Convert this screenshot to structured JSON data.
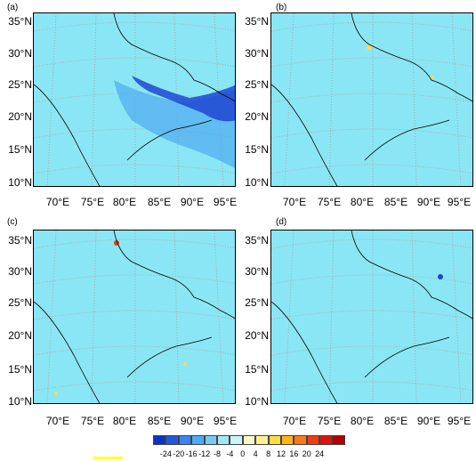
{
  "panels": [
    {
      "label": "(a)"
    },
    {
      "label": "(b)"
    },
    {
      "label": "(c)"
    },
    {
      "label": "(d)"
    }
  ],
  "lat_labels": [
    "35°N",
    "30°N",
    "25°N",
    "20°N",
    "15°N",
    "10°N"
  ],
  "lon_labels": [
    "70°E",
    "75°E",
    "80°E",
    "85°E",
    "90°E",
    "95°E"
  ],
  "colorbar": {
    "ticks": [
      "-24",
      "-20",
      "-16",
      "-12",
      "-8",
      "-4",
      "0",
      "4",
      "8",
      "12",
      "16",
      "20",
      "24"
    ],
    "colors": [
      "#0a32c8",
      "#1e5adc",
      "#3c82f0",
      "#50aaf5",
      "#78c8f5",
      "#a0e6f5",
      "#c8f5fa",
      "#fafac8",
      "#fff096",
      "#ffdc46",
      "#ffb41e",
      "#ff781e",
      "#f03c14",
      "#dc140a",
      "#b40000"
    ],
    "accent_mark_color": "#ffff33"
  },
  "colors": {
    "background_field": "#8ae6f5",
    "strong_negative": "#1e46d2",
    "moderate_negative": "#50aaf0",
    "positive": "#ffdc46"
  }
}
